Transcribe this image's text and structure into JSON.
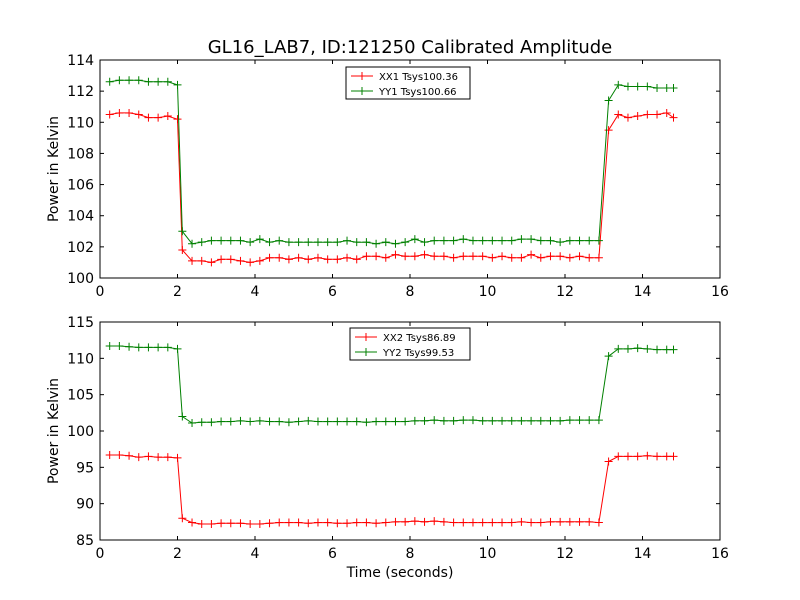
{
  "figure": {
    "title": "GL16_LAB7, ID:121250 Calibrated Amplitude"
  },
  "chart_data": [
    {
      "type": "line",
      "xlabel": "",
      "ylabel": "Power in Kelvin",
      "xlim": [
        0,
        16
      ],
      "ylim": [
        100,
        114
      ],
      "xticks": [
        0,
        2,
        4,
        6,
        8,
        10,
        12,
        14,
        16
      ],
      "yticks": [
        100,
        102,
        104,
        106,
        108,
        110,
        112,
        114
      ],
      "legend_position": "top-center",
      "x": [
        0.25,
        0.5,
        0.75,
        1.0,
        1.25,
        1.5,
        1.75,
        2.0,
        2.125,
        2.375,
        2.625,
        2.875,
        3.125,
        3.375,
        3.625,
        3.875,
        4.125,
        4.375,
        4.625,
        4.875,
        5.125,
        5.375,
        5.625,
        5.875,
        6.125,
        6.375,
        6.625,
        6.875,
        7.125,
        7.375,
        7.625,
        7.875,
        8.125,
        8.375,
        8.625,
        8.875,
        9.125,
        9.375,
        9.625,
        9.875,
        10.125,
        10.375,
        10.625,
        10.875,
        11.125,
        11.375,
        11.625,
        11.875,
        12.125,
        12.375,
        12.625,
        12.875,
        13.125,
        13.375,
        13.625,
        13.875,
        14.125,
        14.375,
        14.625,
        14.8
      ],
      "series": [
        {
          "name": "XX1 Tsys100.36",
          "color": "#ff0000",
          "values": [
            110.5,
            110.6,
            110.6,
            110.5,
            110.3,
            110.3,
            110.4,
            110.2,
            101.8,
            101.1,
            101.1,
            101.0,
            101.2,
            101.2,
            101.1,
            101.0,
            101.1,
            101.3,
            101.3,
            101.2,
            101.3,
            101.2,
            101.3,
            101.2,
            101.2,
            101.3,
            101.2,
            101.4,
            101.4,
            101.3,
            101.5,
            101.4,
            101.4,
            101.5,
            101.4,
            101.4,
            101.3,
            101.4,
            101.4,
            101.4,
            101.3,
            101.4,
            101.3,
            101.3,
            101.5,
            101.3,
            101.4,
            101.4,
            101.3,
            101.4,
            101.3,
            101.3,
            109.5,
            110.5,
            110.3,
            110.4,
            110.5,
            110.5,
            110.6,
            110.3
          ]
        },
        {
          "name": "YY1 Tsys100.66",
          "color": "#008000",
          "values": [
            112.6,
            112.7,
            112.7,
            112.7,
            112.6,
            112.6,
            112.6,
            112.4,
            103.0,
            102.2,
            102.3,
            102.4,
            102.4,
            102.4,
            102.4,
            102.3,
            102.5,
            102.3,
            102.4,
            102.3,
            102.3,
            102.3,
            102.3,
            102.3,
            102.3,
            102.4,
            102.3,
            102.3,
            102.2,
            102.3,
            102.2,
            102.3,
            102.5,
            102.3,
            102.4,
            102.4,
            102.4,
            102.5,
            102.4,
            102.4,
            102.4,
            102.4,
            102.4,
            102.5,
            102.5,
            102.4,
            102.4,
            102.3,
            102.4,
            102.4,
            102.4,
            102.4,
            111.4,
            112.4,
            112.3,
            112.3,
            112.3,
            112.2,
            112.2,
            112.2
          ]
        }
      ]
    },
    {
      "type": "line",
      "xlabel": "Time (seconds)",
      "ylabel": "Power in Kelvin",
      "xlim": [
        0,
        16
      ],
      "ylim": [
        85,
        115
      ],
      "xticks": [
        0,
        2,
        4,
        6,
        8,
        10,
        12,
        14,
        16
      ],
      "yticks": [
        85,
        90,
        95,
        100,
        105,
        110,
        115
      ],
      "legend_position": "top-center",
      "x": [
        0.25,
        0.5,
        0.75,
        1.0,
        1.25,
        1.5,
        1.75,
        2.0,
        2.125,
        2.375,
        2.625,
        2.875,
        3.125,
        3.375,
        3.625,
        3.875,
        4.125,
        4.375,
        4.625,
        4.875,
        5.125,
        5.375,
        5.625,
        5.875,
        6.125,
        6.375,
        6.625,
        6.875,
        7.125,
        7.375,
        7.625,
        7.875,
        8.125,
        8.375,
        8.625,
        8.875,
        9.125,
        9.375,
        9.625,
        9.875,
        10.125,
        10.375,
        10.625,
        10.875,
        11.125,
        11.375,
        11.625,
        11.875,
        12.125,
        12.375,
        12.625,
        12.875,
        13.125,
        13.375,
        13.625,
        13.875,
        14.125,
        14.375,
        14.625,
        14.8
      ],
      "series": [
        {
          "name": "XX2 Tsys86.89",
          "color": "#ff0000",
          "values": [
            96.7,
            96.7,
            96.6,
            96.4,
            96.5,
            96.4,
            96.4,
            96.3,
            88.0,
            87.4,
            87.2,
            87.2,
            87.3,
            87.3,
            87.3,
            87.2,
            87.2,
            87.3,
            87.4,
            87.4,
            87.4,
            87.3,
            87.4,
            87.4,
            87.3,
            87.3,
            87.4,
            87.4,
            87.3,
            87.4,
            87.5,
            87.5,
            87.6,
            87.5,
            87.6,
            87.5,
            87.4,
            87.4,
            87.4,
            87.4,
            87.4,
            87.4,
            87.4,
            87.5,
            87.4,
            87.4,
            87.5,
            87.5,
            87.5,
            87.5,
            87.5,
            87.4,
            95.8,
            96.5,
            96.5,
            96.5,
            96.6,
            96.5,
            96.5,
            96.5
          ]
        },
        {
          "name": "YY2 Tsys99.53",
          "color": "#008000",
          "values": [
            111.7,
            111.7,
            111.6,
            111.5,
            111.5,
            111.5,
            111.5,
            111.3,
            102.0,
            101.1,
            101.2,
            101.2,
            101.3,
            101.3,
            101.4,
            101.3,
            101.4,
            101.3,
            101.3,
            101.2,
            101.3,
            101.4,
            101.3,
            101.3,
            101.3,
            101.3,
            101.3,
            101.2,
            101.3,
            101.3,
            101.3,
            101.3,
            101.4,
            101.4,
            101.5,
            101.4,
            101.4,
            101.5,
            101.5,
            101.4,
            101.4,
            101.4,
            101.4,
            101.4,
            101.4,
            101.4,
            101.4,
            101.4,
            101.5,
            101.5,
            101.5,
            101.5,
            110.3,
            111.3,
            111.3,
            111.4,
            111.3,
            111.2,
            111.2,
            111.2
          ]
        }
      ]
    }
  ]
}
